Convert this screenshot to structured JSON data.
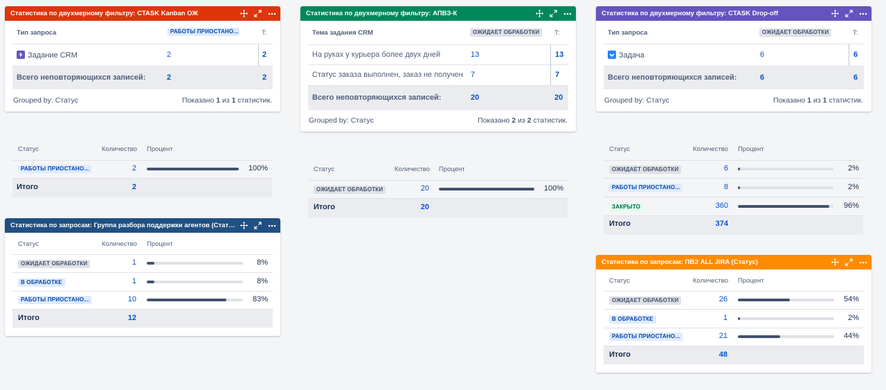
{
  "g1": {
    "title": "Статистика по двухмерному фильтру: CTASK Kanban ОЖ",
    "color": "#de350b",
    "col1": "Тип запроса",
    "col2": "РАБОТЫ ПРИОСТАНО...",
    "col3": "T:",
    "row_label": "Задание CRM",
    "row_val": "2",
    "row_total": "2",
    "total_label": "Всего неповторяющихся записей:",
    "total_val": "2",
    "total_total": "2",
    "grouped": "Grouped by: Статус",
    "shown_a": "Показано",
    "shown_1": "1",
    "shown_of": "из",
    "shown_2": "1",
    "shown_b": "статистик."
  },
  "g2": {
    "title": "Статистика по двухмерному фильтру: АПВЗ-К",
    "color": "#00875a",
    "col1": "Тема задания CRM",
    "col2": "ОЖИДАЕТ ОБРАБОТКИ",
    "col3": "T:",
    "rows": [
      {
        "label": "На руках у курьера более двух дней",
        "val": "13",
        "total": "13"
      },
      {
        "label": "Статус заказа выполнен, заказ не получен",
        "val": "7",
        "total": "7"
      }
    ],
    "total_label": "Всего неповторяющихся записей:",
    "total_val": "20",
    "total_total": "20",
    "grouped": "Grouped by: Статус",
    "shown_a": "Показано",
    "shown_1": "2",
    "shown_of": "из",
    "shown_2": "2",
    "shown_b": "статистик."
  },
  "g3": {
    "title": "Статистика по двухмерному фильтру: CTASK Drop-off",
    "color": "#6554c0",
    "col1": "Тип запроса",
    "col2": "ОЖИДАЕТ ОБРАБОТКИ",
    "col3": "T:",
    "row_label": "Задача",
    "row_val": "6",
    "row_total": "6",
    "total_label": "Всего неповторяющихся записей:",
    "total_val": "6",
    "total_total": "6",
    "grouped": "Grouped by: Статус",
    "shown_a": "Показано",
    "shown_1": "1",
    "shown_of": "из",
    "shown_2": "1",
    "shown_b": "статистик."
  },
  "s1": {
    "h_status": "Статус",
    "h_count": "Количество",
    "h_pct": "Процент",
    "rows": [
      {
        "status": "РАБОТЫ ПРИОСТАНО...",
        "count": "2",
        "pct": "100%",
        "fraction": 1.0
      }
    ],
    "total_label": "Итого",
    "total": "2"
  },
  "s2": {
    "h_status": "Статус",
    "h_count": "Количество",
    "h_pct": "Процент",
    "rows": [
      {
        "status": "ОЖИДАЕТ ОБРАБОТКИ",
        "count": "20",
        "pct": "100%",
        "fraction": 1.0
      }
    ],
    "total_label": "Итого",
    "total": "20"
  },
  "s3": {
    "h_status": "Статус",
    "h_count": "Количество",
    "h_pct": "Процент",
    "rows": [
      {
        "status": "ОЖИДАЕТ ОБРАБОТКИ",
        "count": "6",
        "pct": "2%",
        "fraction": 0.02
      },
      {
        "status": "РАБОТЫ ПРИОСТАНО...",
        "count": "8",
        "pct": "2%",
        "fraction": 0.02
      },
      {
        "status": "ЗАКРЫТО",
        "count": "360",
        "pct": "96%",
        "fraction": 0.96
      }
    ],
    "total_label": "Итого",
    "total": "374"
  },
  "g4": {
    "title": "Статистика по запросам: Группа разбора поддержки агентов (Статус)",
    "color": "#205081",
    "h_status": "Статус",
    "h_count": "Количество",
    "h_pct": "Процент",
    "rows": [
      {
        "status": "ОЖИДАЕТ ОБРАБОТКИ",
        "count": "1",
        "pct": "8%",
        "fraction": 0.08
      },
      {
        "status": "В ОБРАБОТКЕ",
        "count": "1",
        "pct": "8%",
        "fraction": 0.08
      },
      {
        "status": "РАБОТЫ ПРИОСТАНО...",
        "count": "10",
        "pct": "83%",
        "fraction": 0.83
      }
    ],
    "total_label": "Итого",
    "total": "12"
  },
  "g5": {
    "title": "Статистика по запросам: ПВЗ ALL JIRA (Статус)",
    "color": "#ff8b00",
    "h_status": "Статус",
    "h_count": "Количество",
    "h_pct": "Процент",
    "rows": [
      {
        "status": "ОЖИДАЕТ ОБРАБОТКИ",
        "count": "26",
        "pct": "54%",
        "fraction": 0.54
      },
      {
        "status": "В ОБРАБОТКЕ",
        "count": "1",
        "pct": "2%",
        "fraction": 0.02
      },
      {
        "status": "РАБОТЫ ПРИОСТАНО...",
        "count": "21",
        "pct": "44%",
        "fraction": 0.44
      }
    ],
    "total_label": "Итого",
    "total": "48"
  }
}
